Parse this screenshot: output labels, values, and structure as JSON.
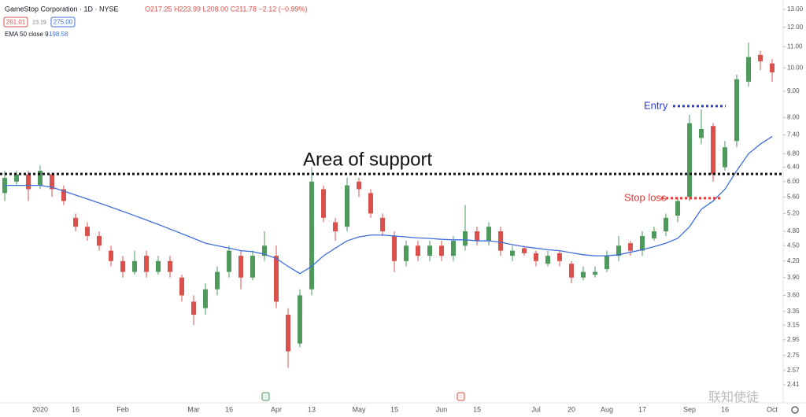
{
  "chart_data": {
    "type": "candlestick",
    "header": "GameStop Corporation · 1D · NYSE",
    "ohlc_text": "O217.25 H223.99 L208.00 C211.78 −2.12 (−0.99%)",
    "bid": "261.01",
    "spread": "23.19",
    "ask": "275.00",
    "indicator": "EMA 50 close 9",
    "indicator_value": "198.58",
    "watermark": "联知使徒",
    "log_scale": true,
    "up_color": "#4e9a5c",
    "down_color": "#d9504c",
    "ema_color": "#3f6fdc",
    "ylim": [
      2.41,
      13
    ],
    "yticks": [
      {
        "value": 2.41,
        "label": "2.41"
      },
      {
        "value": 2.57,
        "label": "2.57"
      },
      {
        "value": 2.75,
        "label": "2.75"
      },
      {
        "value": 2.95,
        "label": "2.95"
      },
      {
        "value": 3.15,
        "label": "3.15"
      },
      {
        "value": 3.35,
        "label": "3.35"
      },
      {
        "value": 3.6,
        "label": "3.60"
      },
      {
        "value": 3.9,
        "label": "3.90"
      },
      {
        "value": 4.2,
        "label": "4.20"
      },
      {
        "value": 4.5,
        "label": "4.50"
      },
      {
        "value": 4.8,
        "label": "4.80"
      },
      {
        "value": 5.2,
        "label": "5.20"
      },
      {
        "value": 5.6,
        "label": "5.60"
      },
      {
        "value": 6,
        "label": "6.00"
      },
      {
        "value": 6.4,
        "label": "6.40"
      },
      {
        "value": 6.8,
        "label": "6.80"
      },
      {
        "value": 7.4,
        "label": "7.40"
      },
      {
        "value": 8,
        "label": "8.00"
      },
      {
        "value": 9,
        "label": "9.00"
      },
      {
        "value": 10,
        "label": "10.00"
      },
      {
        "value": 11,
        "label": "11.00"
      },
      {
        "value": 12,
        "label": "12.00"
      },
      {
        "value": 13,
        "label": "13.00"
      }
    ],
    "categories": [
      null,
      null,
      null,
      "2020",
      null,
      null,
      "16",
      null,
      null,
      null,
      "Feb",
      null,
      null,
      null,
      null,
      null,
      "Mar",
      null,
      null,
      "16",
      null,
      null,
      null,
      "Apr",
      null,
      null,
      "13",
      null,
      null,
      null,
      "May",
      null,
      null,
      "15",
      null,
      null,
      null,
      "Jun",
      null,
      null,
      "15",
      null,
      null,
      null,
      null,
      "Jul",
      null,
      null,
      "20",
      null,
      null,
      "Aug",
      null,
      null,
      "17",
      null,
      null,
      null,
      "Sep",
      null,
      null,
      "16",
      null,
      null,
      null,
      "Oct"
    ],
    "open": [
      5.7,
      6.0,
      6.2,
      5.9,
      6.2,
      5.8,
      5.1,
      4.9,
      4.7,
      4.4,
      4.2,
      4.0,
      4.3,
      4.0,
      4.2,
      3.9,
      3.5,
      3.4,
      3.7,
      4.0,
      4.3,
      3.9,
      4.3,
      4.3,
      3.3,
      2.9,
      3.7,
      5.8,
      5.0,
      4.9,
      6.0,
      5.7,
      5.1,
      4.7,
      4.2,
      4.5,
      4.3,
      4.5,
      4.3,
      4.5,
      4.8,
      4.6,
      4.8,
      4.3,
      4.45,
      4.35,
      4.15,
      4.35,
      4.15,
      3.9,
      3.95,
      4.05,
      4.3,
      4.55,
      4.4,
      4.65,
      4.8,
      5.15,
      5.6,
      7.3,
      7.7,
      6.4,
      7.2,
      9.4,
      10.6,
      10.2
    ],
    "high": [
      6.3,
      6.3,
      6.3,
      6.45,
      6.25,
      5.9,
      5.2,
      5.0,
      4.8,
      4.5,
      4.3,
      4.4,
      4.4,
      4.3,
      4.3,
      3.95,
      3.6,
      3.8,
      4.1,
      4.5,
      4.4,
      4.4,
      4.8,
      4.5,
      3.4,
      3.7,
      6.4,
      5.9,
      5.1,
      6.1,
      6.1,
      5.8,
      5.2,
      4.8,
      4.6,
      4.6,
      4.6,
      4.6,
      4.7,
      5.4,
      4.9,
      5.0,
      4.9,
      4.5,
      4.5,
      4.4,
      4.4,
      4.4,
      4.2,
      4.1,
      4.1,
      4.4,
      4.7,
      4.6,
      4.8,
      4.9,
      5.2,
      5.6,
      8.1,
      8.3,
      7.8,
      7.2,
      9.7,
      11.2,
      10.8,
      10.4
    ],
    "low": [
      5.5,
      5.9,
      5.5,
      5.8,
      5.6,
      5.4,
      4.8,
      4.6,
      4.4,
      4.1,
      3.9,
      3.95,
      3.9,
      3.95,
      3.9,
      3.5,
      3.15,
      3.3,
      3.6,
      3.9,
      3.7,
      3.85,
      4.2,
      3.4,
      2.6,
      2.85,
      3.6,
      5.0,
      4.6,
      4.8,
      5.6,
      5.1,
      4.7,
      4.0,
      4.1,
      4.2,
      4.2,
      4.2,
      4.2,
      4.4,
      4.5,
      4.5,
      4.3,
      4.2,
      4.3,
      4.1,
      4.1,
      4.1,
      3.8,
      3.85,
      3.9,
      4.0,
      4.2,
      4.3,
      4.3,
      4.6,
      4.7,
      5.0,
      5.5,
      7.1,
      6.0,
      6.3,
      7.0,
      9.2,
      9.9,
      9.4
    ],
    "close": [
      6.1,
      6.2,
      5.8,
      6.3,
      5.8,
      5.5,
      4.9,
      4.7,
      4.5,
      4.2,
      4.0,
      4.2,
      4.0,
      4.2,
      4.0,
      3.6,
      3.3,
      3.7,
      4.0,
      4.4,
      3.9,
      4.3,
      4.5,
      3.5,
      2.8,
      3.6,
      6.0,
      5.1,
      4.8,
      5.9,
      5.8,
      5.2,
      4.8,
      4.2,
      4.5,
      4.3,
      4.5,
      4.3,
      4.6,
      4.8,
      4.6,
      4.9,
      4.4,
      4.4,
      4.35,
      4.2,
      4.3,
      4.2,
      3.9,
      4.0,
      4.0,
      4.3,
      4.5,
      4.4,
      4.7,
      4.8,
      5.1,
      5.5,
      7.8,
      7.6,
      6.2,
      7.0,
      9.5,
      10.5,
      10.3,
      9.8
    ],
    "ema": [
      5.9,
      5.9,
      5.9,
      5.9,
      5.85,
      5.75,
      5.65,
      5.55,
      5.45,
      5.35,
      5.25,
      5.15,
      5.05,
      4.95,
      4.85,
      4.75,
      4.65,
      4.55,
      4.5,
      4.45,
      4.4,
      4.38,
      4.33,
      4.25,
      4.1,
      3.97,
      4.1,
      4.3,
      4.45,
      4.6,
      4.68,
      4.72,
      4.72,
      4.7,
      4.68,
      4.66,
      4.65,
      4.63,
      4.62,
      4.62,
      4.6,
      4.6,
      4.57,
      4.52,
      4.48,
      4.45,
      4.42,
      4.4,
      4.36,
      4.32,
      4.3,
      4.3,
      4.32,
      4.37,
      4.42,
      4.48,
      4.55,
      4.65,
      4.9,
      5.3,
      5.5,
      5.8,
      6.3,
      6.8,
      7.1,
      7.35
    ],
    "annotations": [
      {
        "text": "Area of support",
        "price": 6.21,
        "color": "#111111"
      },
      {
        "text": "Entry",
        "price": 8.42,
        "color": "#2a3fd0"
      },
      {
        "text": "Stop loss",
        "price": 5.57,
        "color": "#e03a3a"
      }
    ]
  }
}
